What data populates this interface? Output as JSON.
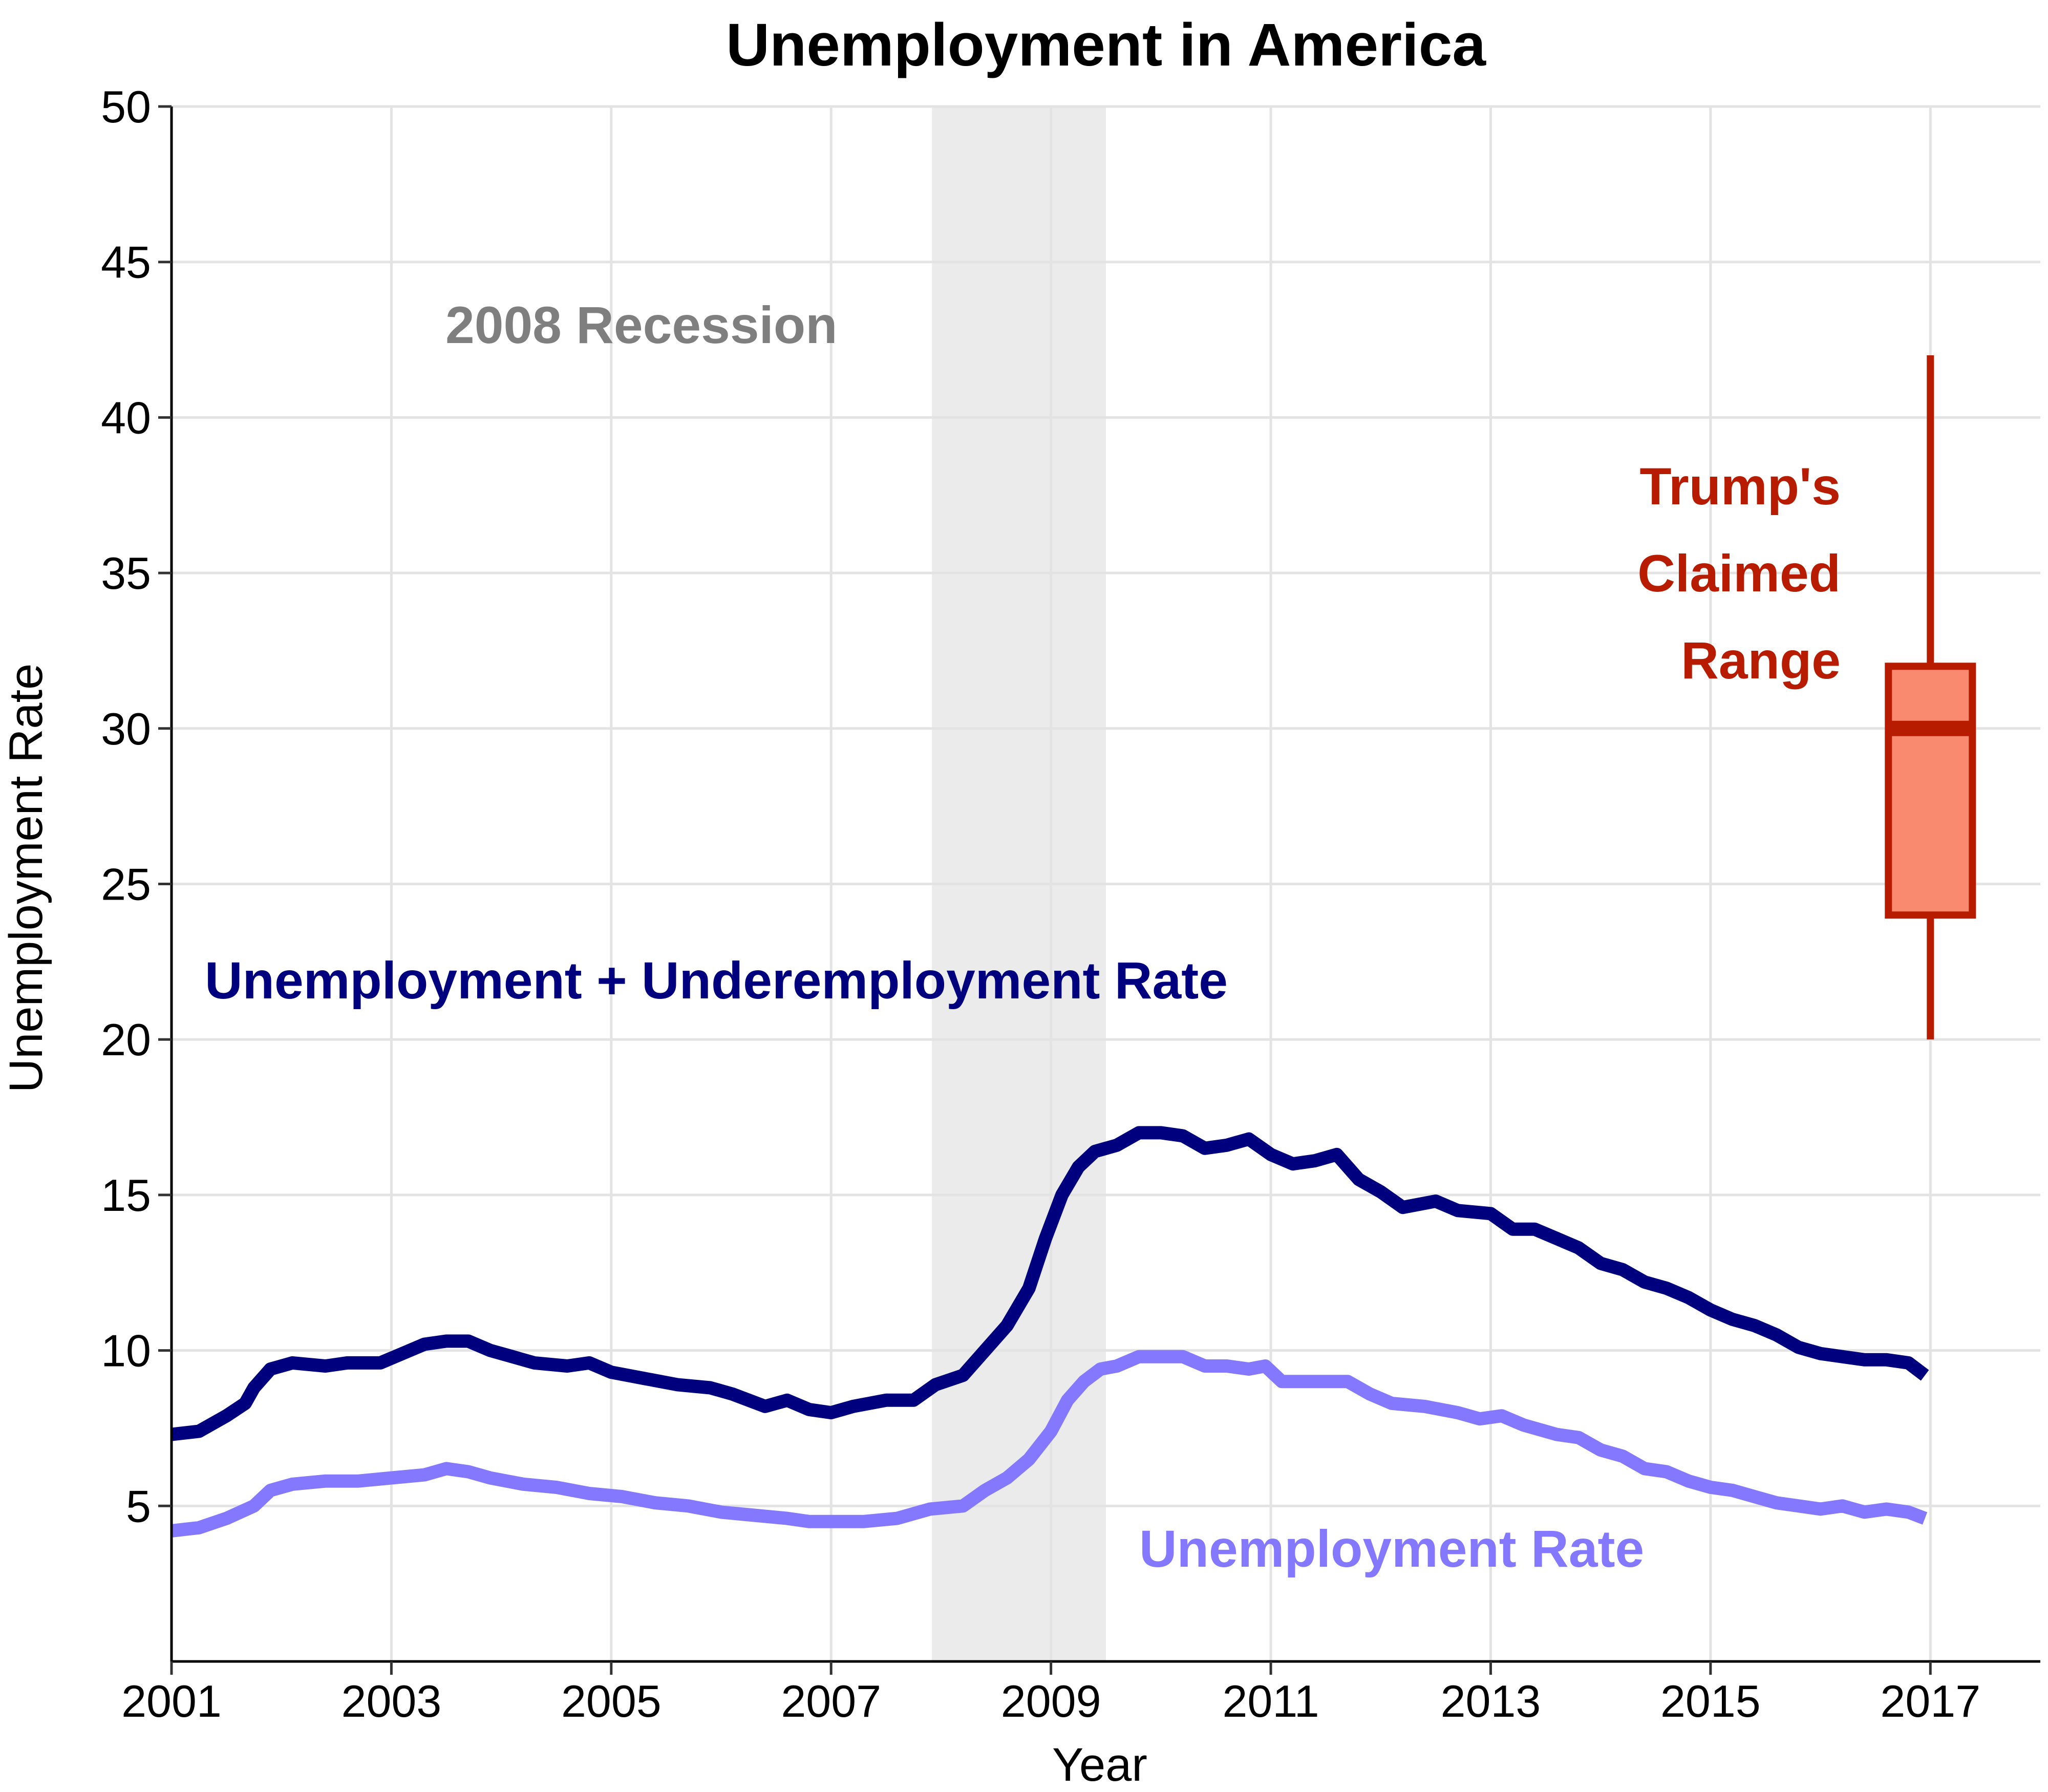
{
  "chart_data": {
    "type": "line",
    "title": "Unemployment in America",
    "xlabel": "Year",
    "ylabel": "Unemployment Rate",
    "xlim": [
      2001,
      2018
    ],
    "ylim": [
      0,
      50
    ],
    "x_ticks": [
      "2001",
      "2003",
      "2005",
      "2007",
      "2009",
      "2011",
      "2013",
      "2015",
      "2017"
    ],
    "y_ticks": [
      "5",
      "10",
      "15",
      "20",
      "25",
      "30",
      "35",
      "40",
      "45",
      "50"
    ],
    "grid": true,
    "legend": "none",
    "colors": {
      "u6": "#00007f",
      "u3": "#8478ff",
      "recession_fill": "#ebebeb",
      "box_fill": "#f9896f",
      "box_stroke": "#b81c00",
      "recession_text": "#7f7f7f"
    },
    "recession": {
      "start": 2007.917,
      "end": 2009.5,
      "label": "2008 Recession"
    },
    "series": [
      {
        "name": "Unemployment + Underemployment Rate",
        "key": "u6",
        "points": [
          [
            2001.0,
            7.3
          ],
          [
            2001.25,
            7.4
          ],
          [
            2001.5,
            7.9
          ],
          [
            2001.67,
            8.3
          ],
          [
            2001.75,
            8.8
          ],
          [
            2001.9,
            9.4
          ],
          [
            2002.1,
            9.6
          ],
          [
            2002.4,
            9.5
          ],
          [
            2002.6,
            9.6
          ],
          [
            2002.9,
            9.6
          ],
          [
            2003.1,
            9.9
          ],
          [
            2003.3,
            10.2
          ],
          [
            2003.5,
            10.3
          ],
          [
            2003.7,
            10.3
          ],
          [
            2003.9,
            10.0
          ],
          [
            2004.1,
            9.8
          ],
          [
            2004.3,
            9.6
          ],
          [
            2004.6,
            9.5
          ],
          [
            2004.8,
            9.6
          ],
          [
            2005.0,
            9.3
          ],
          [
            2005.3,
            9.1
          ],
          [
            2005.6,
            8.9
          ],
          [
            2005.9,
            8.8
          ],
          [
            2006.1,
            8.6
          ],
          [
            2006.4,
            8.2
          ],
          [
            2006.6,
            8.4
          ],
          [
            2006.8,
            8.1
          ],
          [
            2007.0,
            8.0
          ],
          [
            2007.2,
            8.2
          ],
          [
            2007.5,
            8.4
          ],
          [
            2007.75,
            8.4
          ],
          [
            2007.95,
            8.9
          ],
          [
            2008.2,
            9.2
          ],
          [
            2008.4,
            10.0
          ],
          [
            2008.6,
            10.8
          ],
          [
            2008.8,
            12.0
          ],
          [
            2008.95,
            13.6
          ],
          [
            2009.1,
            15.0
          ],
          [
            2009.25,
            15.9
          ],
          [
            2009.4,
            16.4
          ],
          [
            2009.6,
            16.6
          ],
          [
            2009.8,
            17.0
          ],
          [
            2010.0,
            17.0
          ],
          [
            2010.2,
            16.9
          ],
          [
            2010.4,
            16.5
          ],
          [
            2010.6,
            16.6
          ],
          [
            2010.8,
            16.8
          ],
          [
            2011.0,
            16.3
          ],
          [
            2011.2,
            16.0
          ],
          [
            2011.4,
            16.1
          ],
          [
            2011.6,
            16.3
          ],
          [
            2011.8,
            15.5
          ],
          [
            2012.0,
            15.1
          ],
          [
            2012.2,
            14.6
          ],
          [
            2012.5,
            14.8
          ],
          [
            2012.7,
            14.5
          ],
          [
            2013.0,
            14.4
          ],
          [
            2013.2,
            13.9
          ],
          [
            2013.4,
            13.9
          ],
          [
            2013.6,
            13.6
          ],
          [
            2013.8,
            13.3
          ],
          [
            2014.0,
            12.8
          ],
          [
            2014.2,
            12.6
          ],
          [
            2014.4,
            12.2
          ],
          [
            2014.6,
            12.0
          ],
          [
            2014.8,
            11.7
          ],
          [
            2015.0,
            11.3
          ],
          [
            2015.2,
            11.0
          ],
          [
            2015.4,
            10.8
          ],
          [
            2015.6,
            10.5
          ],
          [
            2015.8,
            10.1
          ],
          [
            2016.0,
            9.9
          ],
          [
            2016.2,
            9.8
          ],
          [
            2016.4,
            9.7
          ],
          [
            2016.6,
            9.7
          ],
          [
            2016.8,
            9.6
          ],
          [
            2016.95,
            9.2
          ]
        ]
      },
      {
        "name": "Unemployment Rate",
        "key": "u3",
        "points": [
          [
            2001.0,
            4.2
          ],
          [
            2001.25,
            4.3
          ],
          [
            2001.5,
            4.6
          ],
          [
            2001.75,
            5.0
          ],
          [
            2001.9,
            5.5
          ],
          [
            2002.1,
            5.7
          ],
          [
            2002.4,
            5.8
          ],
          [
            2002.7,
            5.8
          ],
          [
            2003.0,
            5.9
          ],
          [
            2003.3,
            6.0
          ],
          [
            2003.5,
            6.2
          ],
          [
            2003.7,
            6.1
          ],
          [
            2003.9,
            5.9
          ],
          [
            2004.2,
            5.7
          ],
          [
            2004.5,
            5.6
          ],
          [
            2004.8,
            5.4
          ],
          [
            2005.1,
            5.3
          ],
          [
            2005.4,
            5.1
          ],
          [
            2005.7,
            5.0
          ],
          [
            2006.0,
            4.8
          ],
          [
            2006.3,
            4.7
          ],
          [
            2006.6,
            4.6
          ],
          [
            2006.8,
            4.5
          ],
          [
            2007.0,
            4.5
          ],
          [
            2007.3,
            4.5
          ],
          [
            2007.6,
            4.6
          ],
          [
            2007.9,
            4.9
          ],
          [
            2008.2,
            5.0
          ],
          [
            2008.4,
            5.5
          ],
          [
            2008.6,
            5.9
          ],
          [
            2008.8,
            6.5
          ],
          [
            2009.0,
            7.4
          ],
          [
            2009.15,
            8.4
          ],
          [
            2009.3,
            9.0
          ],
          [
            2009.45,
            9.4
          ],
          [
            2009.6,
            9.5
          ],
          [
            2009.8,
            9.8
          ],
          [
            2010.0,
            9.8
          ],
          [
            2010.2,
            9.8
          ],
          [
            2010.4,
            9.5
          ],
          [
            2010.6,
            9.5
          ],
          [
            2010.8,
            9.4
          ],
          [
            2010.95,
            9.5
          ],
          [
            2011.1,
            9.0
          ],
          [
            2011.4,
            9.0
          ],
          [
            2011.7,
            9.0
          ],
          [
            2011.9,
            8.6
          ],
          [
            2012.1,
            8.3
          ],
          [
            2012.4,
            8.2
          ],
          [
            2012.7,
            8.0
          ],
          [
            2012.9,
            7.8
          ],
          [
            2013.1,
            7.9
          ],
          [
            2013.3,
            7.6
          ],
          [
            2013.6,
            7.3
          ],
          [
            2013.8,
            7.2
          ],
          [
            2014.0,
            6.8
          ],
          [
            2014.2,
            6.6
          ],
          [
            2014.4,
            6.2
          ],
          [
            2014.6,
            6.1
          ],
          [
            2014.8,
            5.8
          ],
          [
            2015.0,
            5.6
          ],
          [
            2015.2,
            5.5
          ],
          [
            2015.4,
            5.3
          ],
          [
            2015.6,
            5.1
          ],
          [
            2015.8,
            5.0
          ],
          [
            2016.0,
            4.9
          ],
          [
            2016.2,
            5.0
          ],
          [
            2016.4,
            4.8
          ],
          [
            2016.6,
            4.9
          ],
          [
            2016.8,
            4.8
          ],
          [
            2016.95,
            4.6
          ]
        ]
      }
    ],
    "boxplot": {
      "x": 2017,
      "min": 20,
      "q1": 24,
      "median": 30,
      "q3": 32,
      "max": 42
    },
    "annotations": {
      "recession_label": "2008 Recession",
      "u6_label": "Unemployment + Underemployment Rate",
      "u3_label": "Unemployment Rate",
      "trump_line1": "Trump's",
      "trump_line2": "Claimed",
      "trump_line3": "Range"
    }
  }
}
